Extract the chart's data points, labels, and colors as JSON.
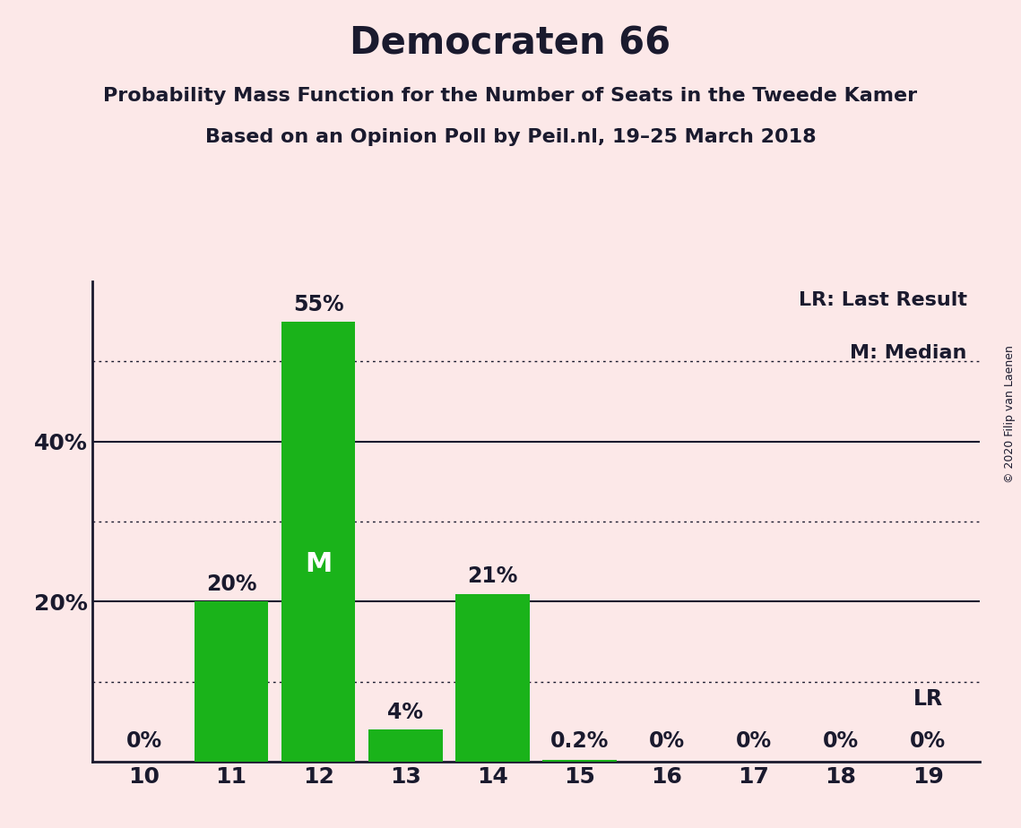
{
  "title": "Democraten 66",
  "subtitle1": "Probability Mass Function for the Number of Seats in the Tweede Kamer",
  "subtitle2": "Based on an Opinion Poll by Peil.nl, 19–25 March 2018",
  "copyright": "© 2020 Filip van Laenen",
  "categories": [
    10,
    11,
    12,
    13,
    14,
    15,
    16,
    17,
    18,
    19
  ],
  "values": [
    0.0,
    20.0,
    55.0,
    4.0,
    21.0,
    0.2,
    0.0,
    0.0,
    0.0,
    0.0
  ],
  "bar_labels": [
    "0%",
    "20%",
    "55%",
    "4%",
    "21%",
    "0.2%",
    "0%",
    "0%",
    "0%",
    "0%"
  ],
  "bar_color": "#1ab31a",
  "median_bar": 12,
  "lr_bar": 19,
  "lr_label": "LR",
  "legend_lr": "LR: Last Result",
  "legend_m": "M: Median",
  "ylim": [
    0,
    60
  ],
  "solid_yticks": [
    20,
    40
  ],
  "dotted_yticks": [
    10,
    30,
    50
  ],
  "background_color": "#fce8e8",
  "bar_text_color": "#1a1a2e",
  "median_text_color": "#ffffff",
  "axis_color": "#1a1a2e",
  "title_fontsize": 30,
  "subtitle_fontsize": 16,
  "ylabel_fontsize": 18,
  "xlabel_fontsize": 18,
  "bar_label_fontsize": 17,
  "legend_fontsize": 16,
  "median_fontsize": 22
}
